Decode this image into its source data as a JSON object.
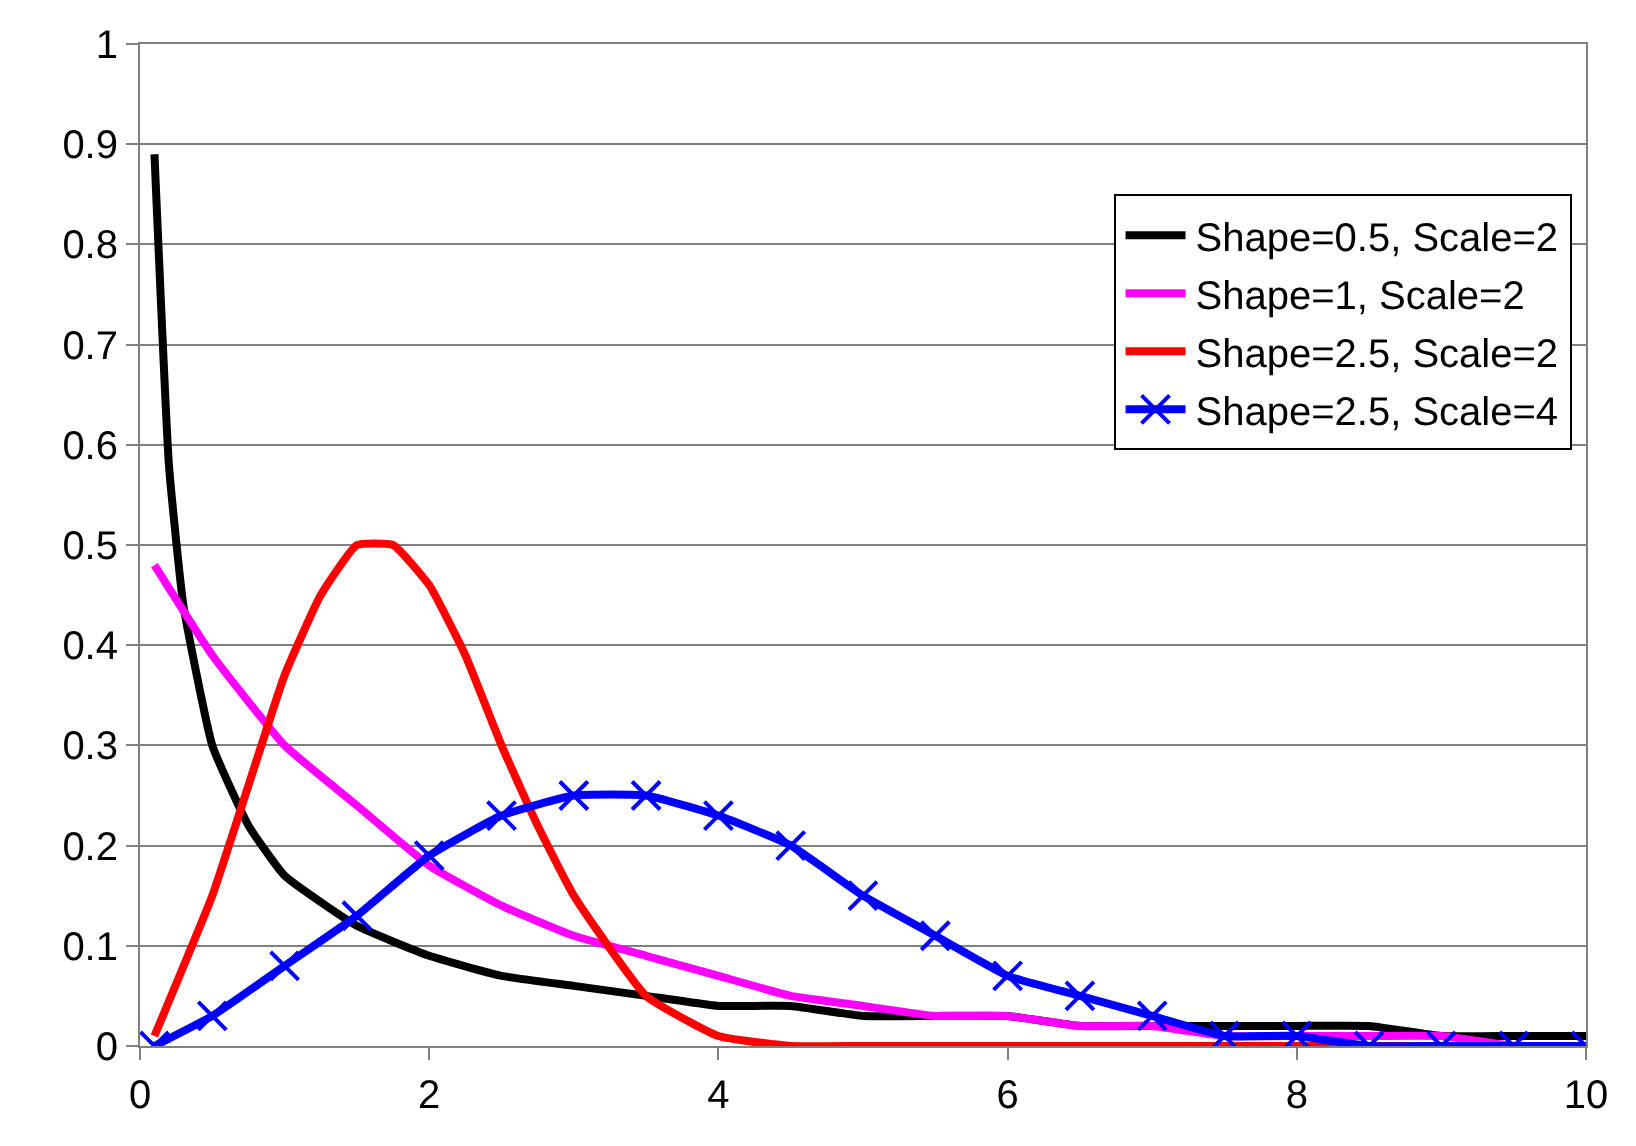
{
  "chart_data": {
    "type": "line",
    "xlim": [
      0,
      10
    ],
    "xticks": [
      0,
      2,
      4,
      6,
      8,
      10
    ],
    "ylim": [
      0,
      1
    ],
    "yticks": [
      0,
      0.1,
      0.2,
      0.3,
      0.4,
      0.5,
      0.6,
      0.7,
      0.8,
      0.9,
      1
    ],
    "grid": "y",
    "legend": "top right",
    "line_style": "solid",
    "series": [
      {
        "name": "Shape=0.5, Scale=2",
        "color": "#000000",
        "marker": "none",
        "x": [
          0.1,
          0.2,
          0.3,
          0.5,
          0.75,
          1,
          1.5,
          2,
          2.5,
          3,
          3.5,
          4,
          4.5,
          5,
          5.5,
          6,
          6.5,
          7,
          7.5,
          8,
          8.5,
          9,
          9.5,
          10
        ],
        "values": [
          0.89,
          0.58,
          0.44,
          0.3,
          0.22,
          0.17,
          0.12,
          0.09,
          0.07,
          0.06,
          0.05,
          0.04,
          0.04,
          0.03,
          0.03,
          0.03,
          0.02,
          0.02,
          0.02,
          0.02,
          0.02,
          0.01,
          0.01,
          0.01
        ]
      },
      {
        "name": "Shape=1, Scale=2",
        "color": "#ff00ff",
        "marker": "none",
        "x": [
          0.1,
          0.5,
          1,
          1.5,
          2,
          2.5,
          3,
          3.5,
          4,
          4.5,
          5,
          5.5,
          6,
          6.5,
          7,
          7.5,
          8,
          8.5,
          9,
          9.5,
          10
        ],
        "values": [
          0.48,
          0.39,
          0.3,
          0.24,
          0.18,
          0.14,
          0.11,
          0.09,
          0.07,
          0.05,
          0.04,
          0.03,
          0.03,
          0.02,
          0.02,
          0.01,
          0.01,
          0.01,
          0.01,
          0,
          0
        ]
      },
      {
        "name": "Shape=2.5, Scale=2",
        "color": "#ff0000",
        "marker": "none",
        "x": [
          0.1,
          0.5,
          0.75,
          1,
          1.25,
          1.5,
          1.75,
          2,
          2.25,
          2.5,
          2.75,
          3,
          3.5,
          4,
          4.5,
          5,
          6,
          7,
          8,
          9,
          10
        ],
        "values": [
          0.01,
          0.15,
          0.26,
          0.37,
          0.45,
          0.5,
          0.5,
          0.46,
          0.39,
          0.3,
          0.22,
          0.15,
          0.05,
          0.01,
          0,
          0,
          0,
          0,
          0,
          0,
          0
        ]
      },
      {
        "name": "Shape=2.5, Scale=4",
        "color": "#0000ff",
        "marker": "cross",
        "x": [
          0.1,
          0.5,
          1,
          1.5,
          2,
          2.5,
          3,
          3.5,
          4,
          4.5,
          5,
          5.5,
          6,
          6.5,
          7,
          7.5,
          8,
          8.5,
          9,
          9.5,
          10
        ],
        "values": [
          0,
          0.03,
          0.08,
          0.13,
          0.19,
          0.23,
          0.25,
          0.25,
          0.23,
          0.2,
          0.15,
          0.11,
          0.07,
          0.05,
          0.03,
          0.01,
          0.01,
          0,
          0,
          0,
          0
        ]
      }
    ]
  }
}
